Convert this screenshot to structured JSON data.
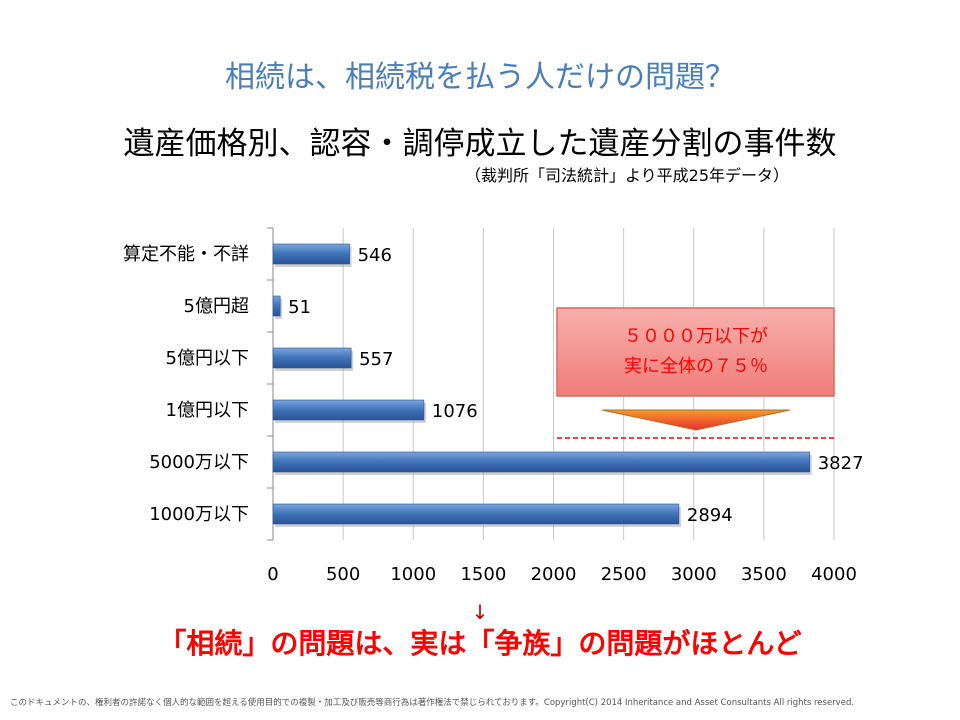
{
  "title": "相続は、相続税を払う人だけの問題？",
  "subtitle": "遺産価格別、認容・調停成立した遺産分割の事件数",
  "source": "（裁判所「司法統計」より平成25年データ）",
  "arrow": "↓",
  "conclusion": "「相続」の問題は、実は「争族」の問題がほとんど",
  "footer": "このドキュメントの、権利者の許諾なく個人的な範囲を超える使用目的での複製・加工及び販売等商行為は著作権法で禁じられております。Copyright(C) 2014 Inheritance and Asset Consultants All rights reserved.",
  "callout": {
    "line1": "５０００万以下が",
    "line2": "実に全体の７５％"
  },
  "chart_data": {
    "type": "bar",
    "orientation": "horizontal",
    "categories": [
      "算定不能・不詳",
      "5億円超",
      "5億円以下",
      "1億円以下",
      "5000万以下",
      "1000万以下"
    ],
    "values": [
      546,
      51,
      557,
      1076,
      3827,
      2894
    ],
    "xlim": [
      0,
      4000
    ],
    "xticks": [
      0,
      500,
      1000,
      1500,
      2000,
      2500,
      3000,
      3500,
      4000
    ],
    "grid": true,
    "bar_color": "#4a7ebb",
    "accent_color": "#ff0000"
  }
}
